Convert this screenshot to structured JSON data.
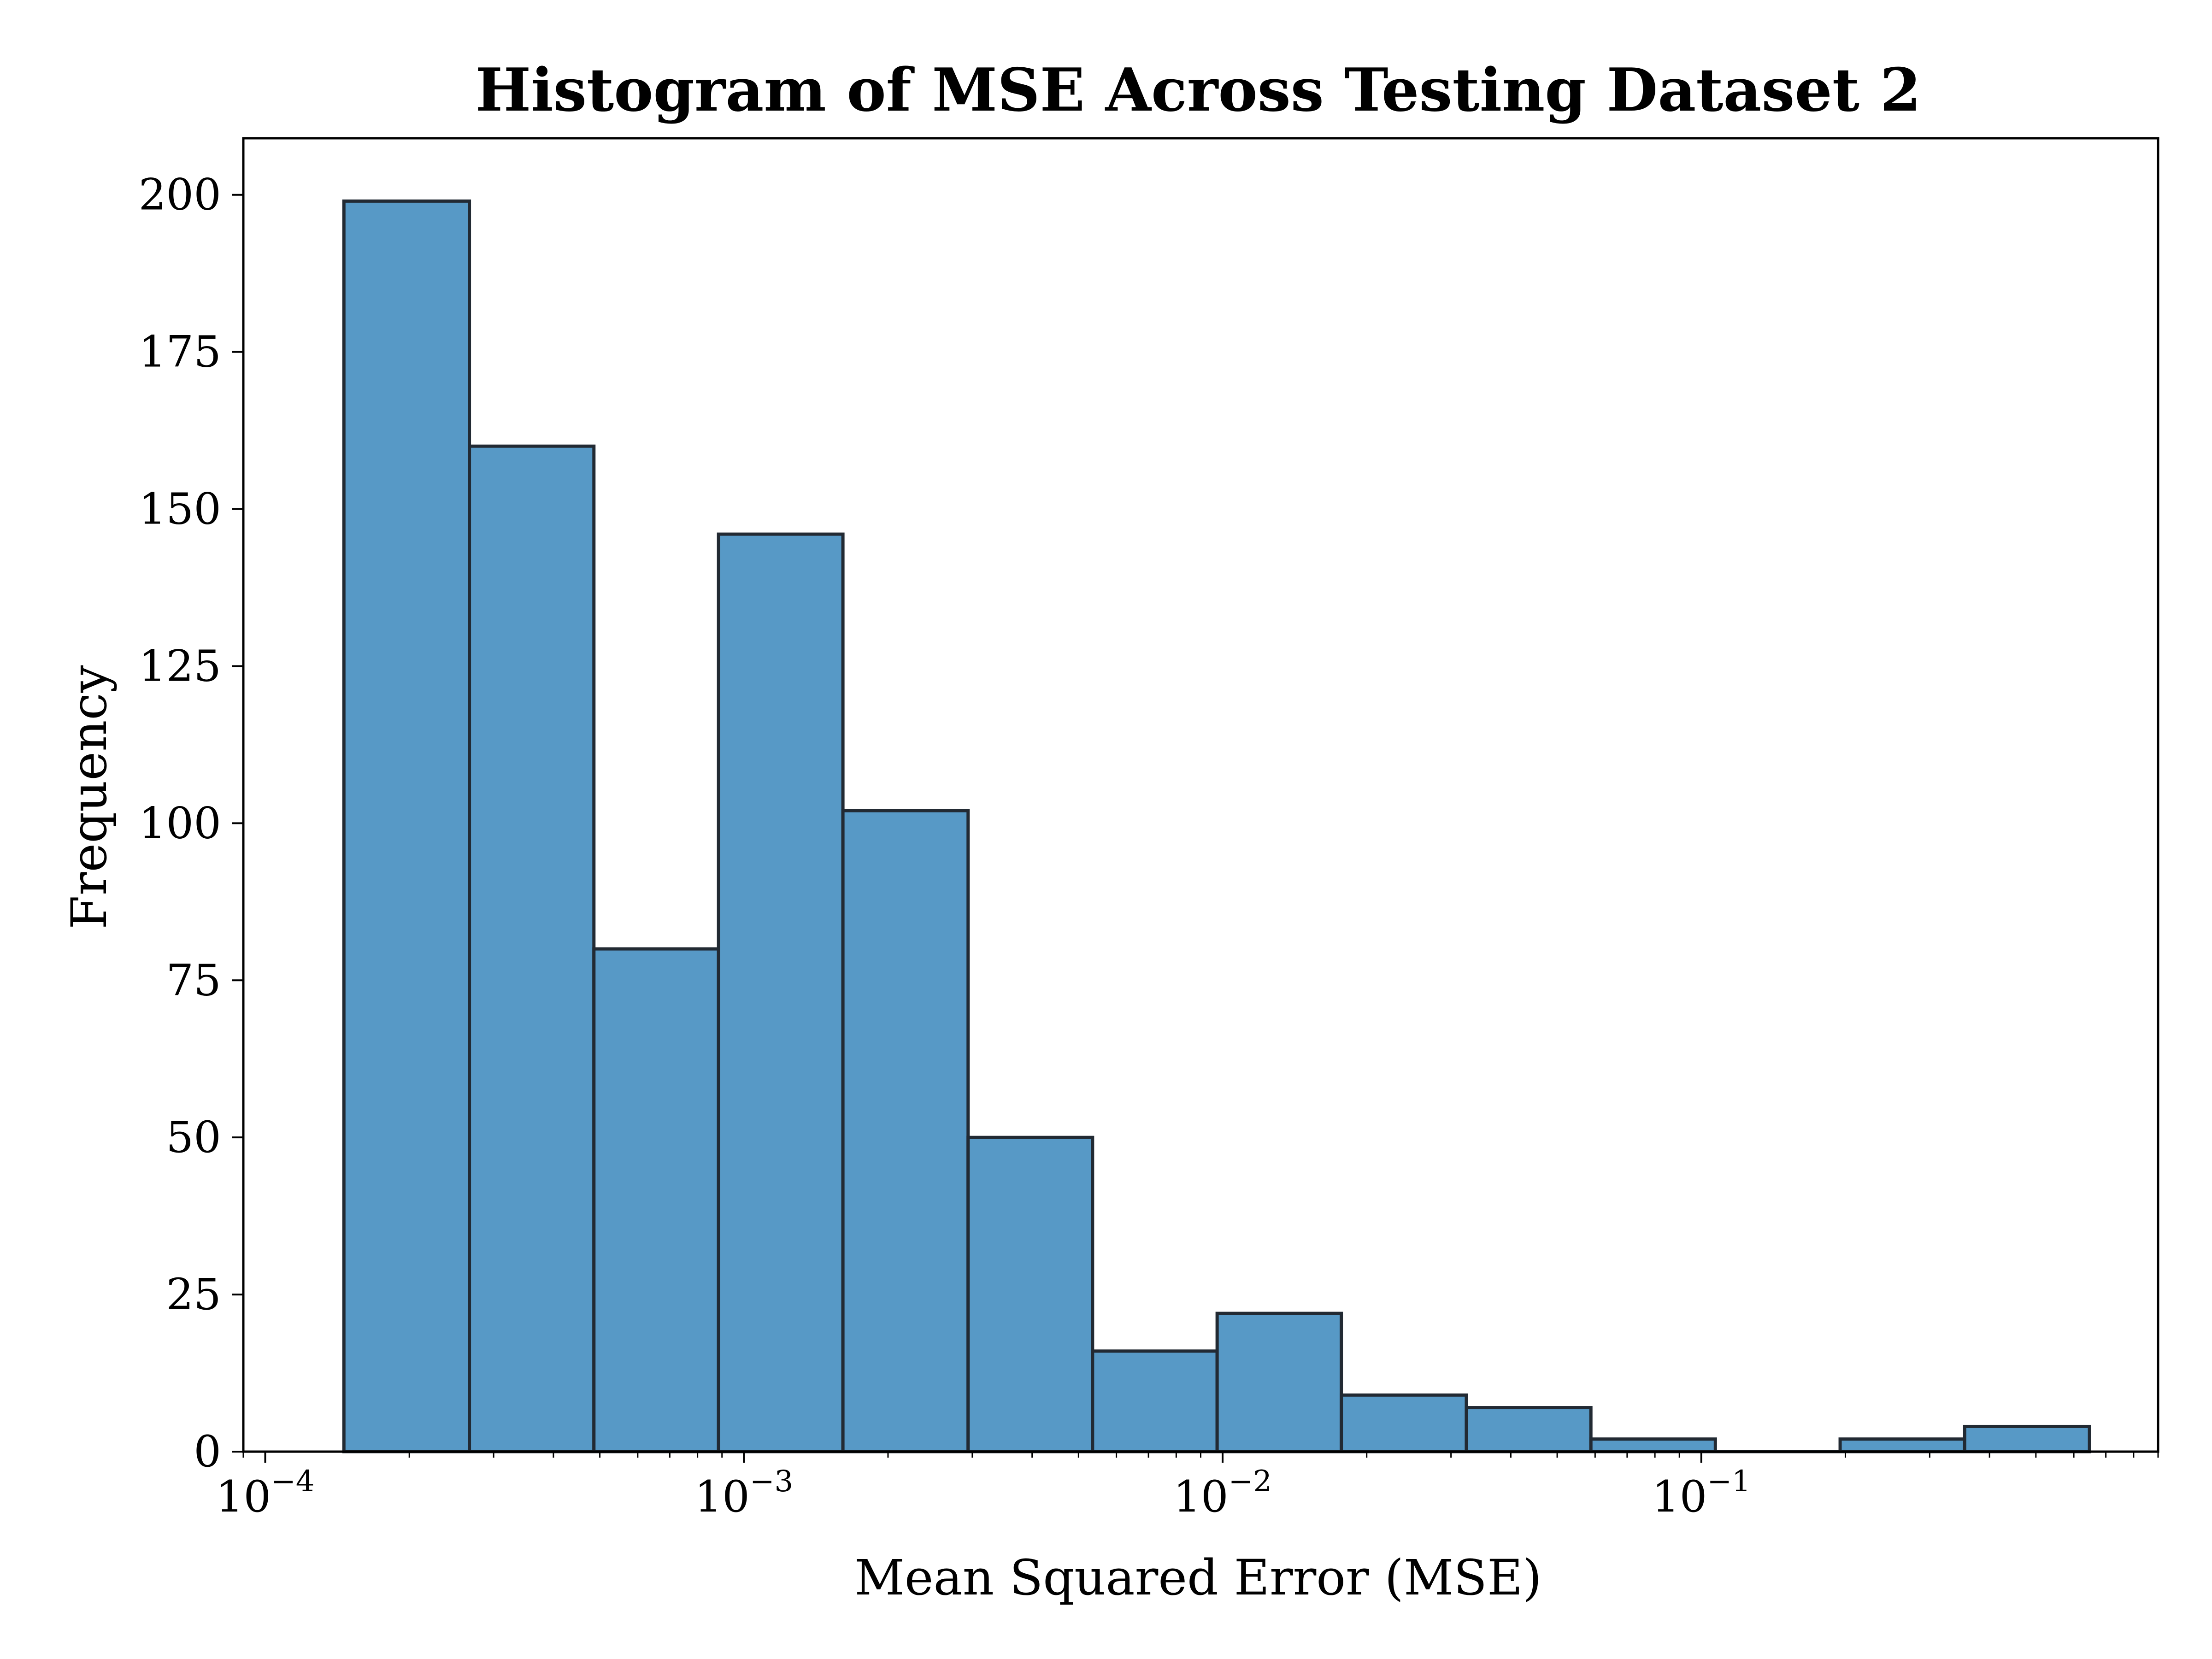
{
  "chart_data": {
    "type": "bar",
    "title": "Histogram of MSE Across Testing Dataset 2",
    "xlabel": "Mean Squared Error (MSE)",
    "ylabel": "Frequency",
    "x_scale": "log",
    "xlim": [
      9e-05,
      0.9
    ],
    "ylim": [
      0,
      209
    ],
    "grid": false,
    "y_ticks": [
      0,
      25,
      50,
      75,
      100,
      125,
      150,
      175,
      200
    ],
    "x_major_ticks": [
      {
        "value": 0.0001,
        "base": "10",
        "exp": "−4"
      },
      {
        "value": 0.001,
        "base": "10",
        "exp": "−3"
      },
      {
        "value": 0.01,
        "base": "10",
        "exp": "−2"
      },
      {
        "value": 0.1,
        "base": "10",
        "exp": "−1"
      }
    ],
    "bins": [
      {
        "x0": 0.000146,
        "x1": 0.000267,
        "count": 199
      },
      {
        "x0": 0.000267,
        "x1": 0.000486,
        "count": 160
      },
      {
        "x0": 0.000486,
        "x1": 0.000885,
        "count": 80
      },
      {
        "x0": 0.000885,
        "x1": 0.00161,
        "count": 146
      },
      {
        "x0": 0.00161,
        "x1": 0.00294,
        "count": 102
      },
      {
        "x0": 0.00294,
        "x1": 0.00535,
        "count": 50
      },
      {
        "x0": 0.00535,
        "x1": 0.00974,
        "count": 16
      },
      {
        "x0": 0.00974,
        "x1": 0.0177,
        "count": 22
      },
      {
        "x0": 0.0177,
        "x1": 0.0323,
        "count": 9
      },
      {
        "x0": 0.0323,
        "x1": 0.0588,
        "count": 7
      },
      {
        "x0": 0.0588,
        "x1": 0.107,
        "count": 2
      },
      {
        "x0": 0.107,
        "x1": 0.195,
        "count": 0
      },
      {
        "x0": 0.195,
        "x1": 0.355,
        "count": 2
      },
      {
        "x0": 0.355,
        "x1": 0.647,
        "count": 4
      }
    ],
    "bar_color": "#5799c6",
    "edge_color": "#222a33"
  }
}
